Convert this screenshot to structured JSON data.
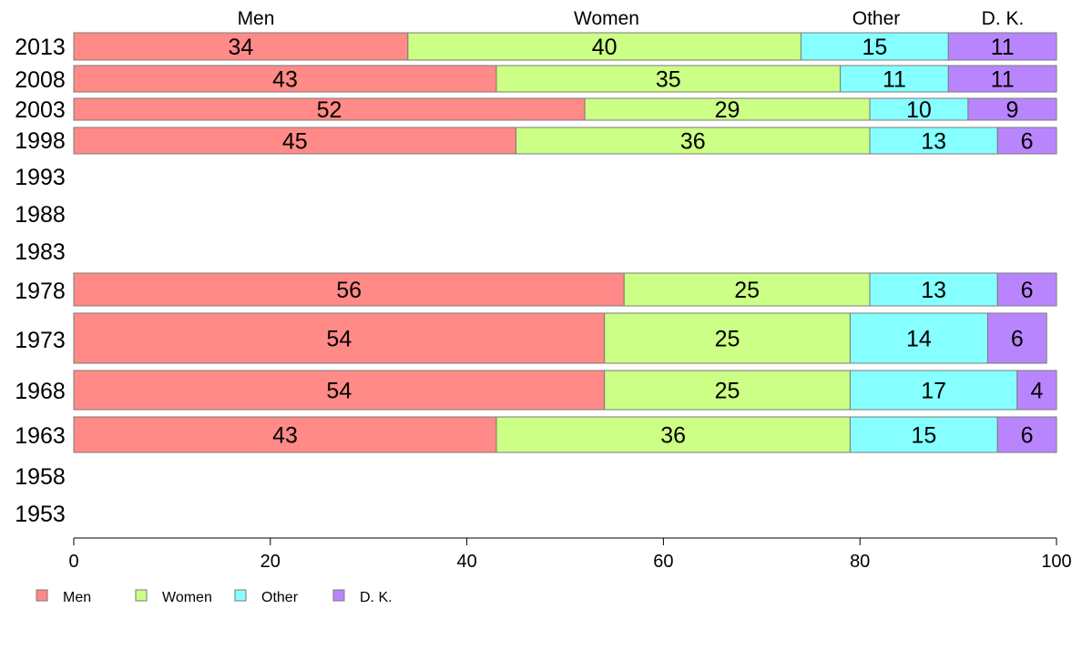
{
  "chart_data": {
    "type": "bar",
    "orientation": "horizontal",
    "stacked": true,
    "categories": [
      "2013",
      "2008",
      "2003",
      "1998",
      "1993",
      "1988",
      "1983",
      "1978",
      "1973",
      "1968",
      "1963",
      "1958",
      "1953"
    ],
    "series": [
      {
        "name": "Men",
        "color": "#ff8a87",
        "values": [
          34,
          43,
          52,
          45,
          null,
          null,
          null,
          56,
          54,
          54,
          43,
          null,
          null
        ]
      },
      {
        "name": "Women",
        "color": "#ccff85",
        "values": [
          40,
          35,
          29,
          36,
          null,
          null,
          null,
          25,
          25,
          25,
          36,
          null,
          null
        ]
      },
      {
        "name": "Other",
        "color": "#85ffff",
        "values": [
          15,
          11,
          10,
          13,
          null,
          null,
          null,
          13,
          14,
          17,
          15,
          null,
          null
        ]
      },
      {
        "name": "D. K.",
        "color": "#b985ff",
        "values": [
          11,
          11,
          9,
          6,
          null,
          null,
          null,
          6,
          6,
          4,
          6,
          null,
          null
        ]
      }
    ],
    "column_headers": [
      "Men",
      "Women",
      "Other",
      "D. K."
    ],
    "xlim": [
      0,
      100
    ],
    "x_ticks": [
      "0",
      "20",
      "40",
      "60",
      "80",
      "100"
    ],
    "legend_position": "bottom-left",
    "grid": false
  }
}
